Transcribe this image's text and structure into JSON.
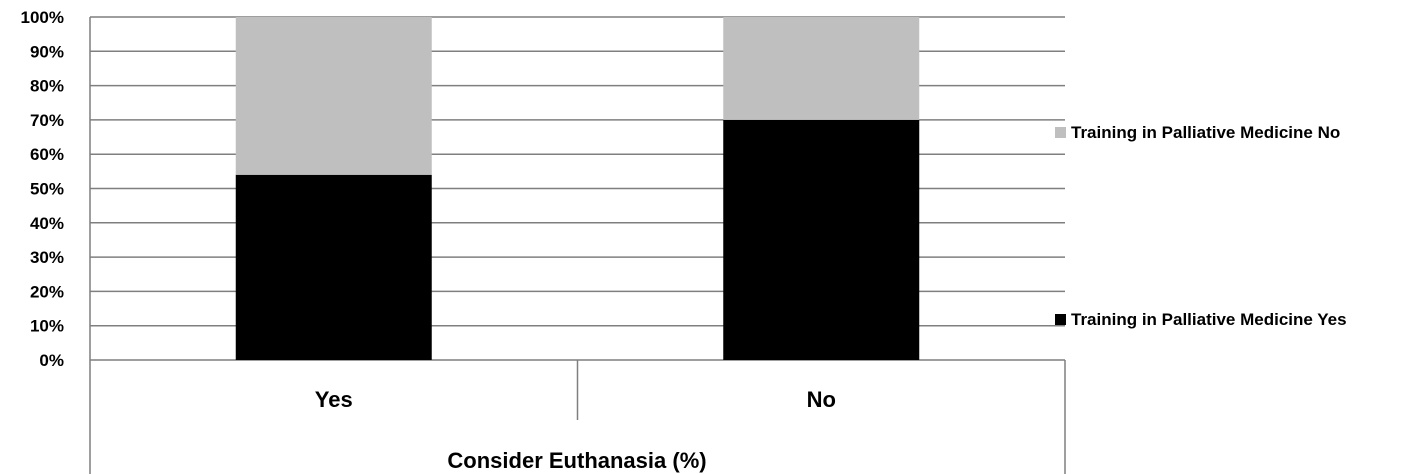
{
  "chart_data": {
    "type": "bar",
    "stacked": true,
    "categories": [
      "Yes",
      "No"
    ],
    "series": [
      {
        "name": "Training in Palliative Medicine Yes",
        "values": [
          54,
          70
        ],
        "color": "#000000"
      },
      {
        "name": "Training in Palliative Medicine No",
        "values": [
          46,
          30
        ],
        "color": "#bfbfbf"
      }
    ],
    "xlabel": "Consider Euthanasia (%)",
    "ylabel": "",
    "ylim": [
      0,
      100
    ],
    "yticks": [
      "0%",
      "10%",
      "20%",
      "30%",
      "40%",
      "50%",
      "60%",
      "70%",
      "80%",
      "90%",
      "100%"
    ],
    "grid": true,
    "legend_position": "right"
  }
}
